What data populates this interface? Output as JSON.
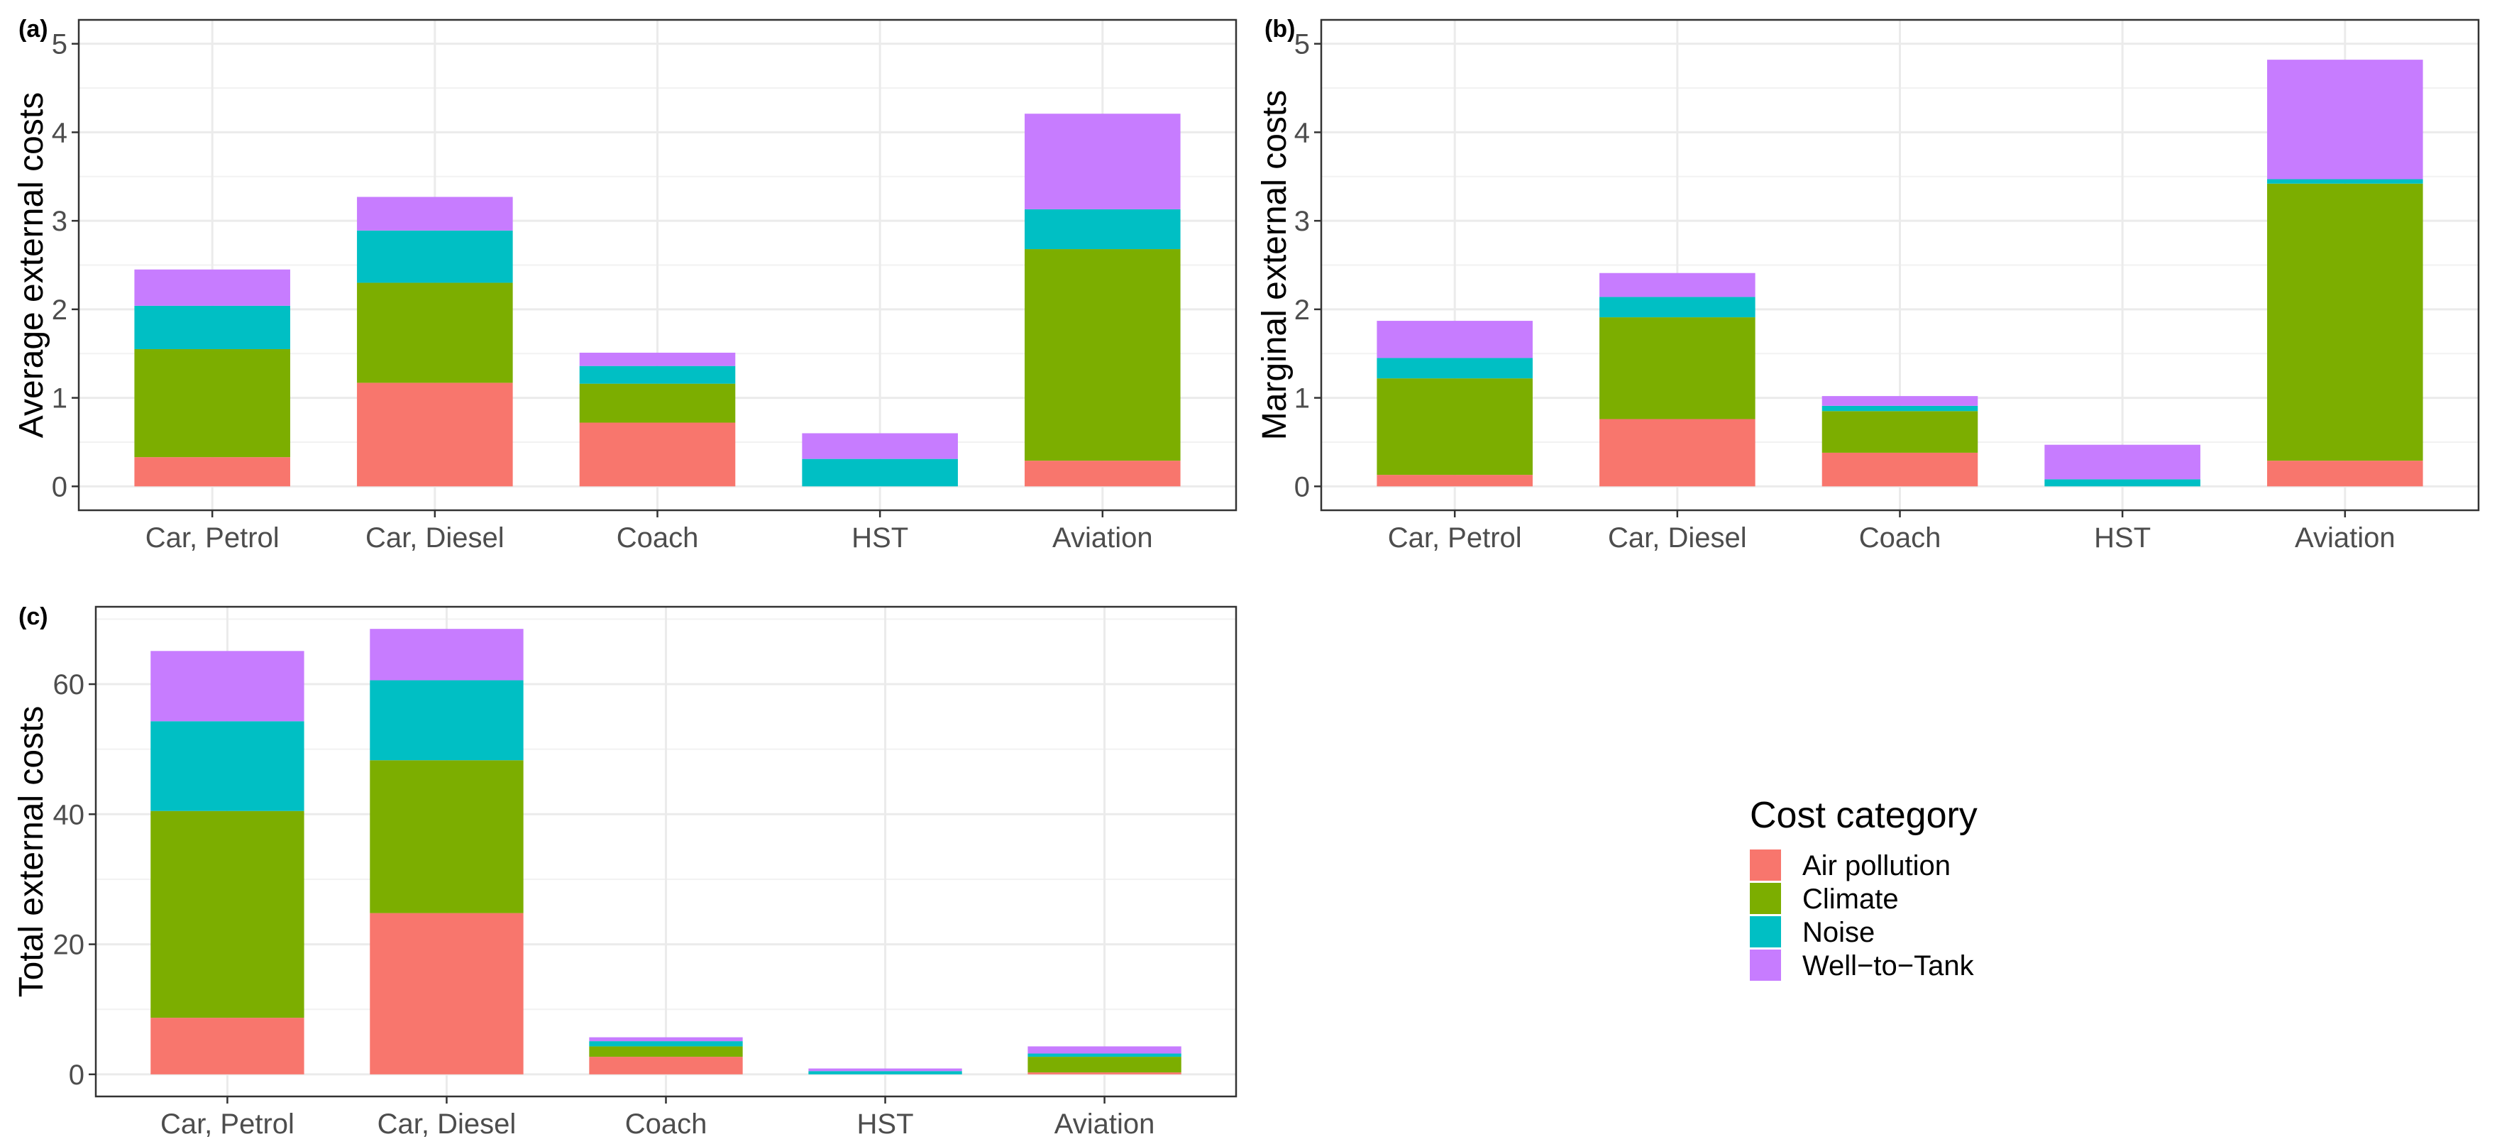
{
  "colors": {
    "Air pollution": "#F8766D",
    "Climate": "#7CAE00",
    "Noise": "#00BFC4",
    "Well-to-Tank": "#C77CFF"
  },
  "legend": {
    "title": "Cost category",
    "items": [
      "Air pollution",
      "Climate",
      "Noise",
      "Well−to−Tank"
    ]
  },
  "chart_data": [
    {
      "type": "bar",
      "stacked": true,
      "panel": "(a)",
      "title": "",
      "xlabel": "",
      "ylabel": "Average external costs",
      "ylim": [
        -0.27,
        5.27
      ],
      "yticks": [
        0,
        1,
        2,
        3,
        4,
        5
      ],
      "yticks_labels": [
        "0",
        "1",
        "2",
        "3",
        "4",
        "5"
      ],
      "grid": true,
      "categories": [
        "Car, Petrol",
        "Car, Diesel",
        "Coach",
        "HST",
        "Aviation"
      ],
      "series": [
        {
          "name": "Air pollution",
          "values": [
            0.33,
            1.17,
            0.72,
            0.0,
            0.29
          ]
        },
        {
          "name": "Climate",
          "values": [
            1.22,
            1.13,
            0.44,
            0.0,
            2.39
          ]
        },
        {
          "name": "Noise",
          "values": [
            0.49,
            0.59,
            0.2,
            0.31,
            0.45
          ]
        },
        {
          "name": "Well-to-Tank",
          "values": [
            0.41,
            0.38,
            0.15,
            0.29,
            1.08
          ]
        }
      ]
    },
    {
      "type": "bar",
      "stacked": true,
      "panel": "(b)",
      "title": "",
      "xlabel": "",
      "ylabel": "Marginal external costs",
      "ylim": [
        -0.27,
        5.27
      ],
      "yticks": [
        0,
        1,
        2,
        3,
        4,
        5
      ],
      "yticks_labels": [
        "0",
        "1",
        "2",
        "3",
        "4",
        "5"
      ],
      "grid": true,
      "categories": [
        "Car, Petrol",
        "Car, Diesel",
        "Coach",
        "HST",
        "Aviation"
      ],
      "series": [
        {
          "name": "Air pollution",
          "values": [
            0.13,
            0.76,
            0.38,
            0.0,
            0.29
          ]
        },
        {
          "name": "Climate",
          "values": [
            1.09,
            1.15,
            0.47,
            0.0,
            3.13
          ]
        },
        {
          "name": "Noise",
          "values": [
            0.23,
            0.23,
            0.06,
            0.08,
            0.05
          ]
        },
        {
          "name": "Well-to-Tank",
          "values": [
            0.42,
            0.27,
            0.11,
            0.39,
            1.35
          ]
        }
      ]
    },
    {
      "type": "bar",
      "stacked": true,
      "panel": "(c)",
      "title": "",
      "xlabel": "",
      "ylabel": "Total external costs",
      "ylim": [
        -3.4,
        71.9
      ],
      "yticks": [
        0,
        20,
        40,
        60
      ],
      "yticks_labels": [
        "0",
        "20",
        "40",
        "60"
      ],
      "grid": true,
      "categories": [
        "Car, Petrol",
        "Car, Diesel",
        "Coach",
        "HST",
        "Aviation"
      ],
      "series": [
        {
          "name": "Air pollution",
          "values": [
            8.7,
            24.8,
            2.7,
            0.0,
            0.3
          ]
        },
        {
          "name": "Climate",
          "values": [
            31.8,
            23.5,
            1.6,
            0.0,
            2.4
          ]
        },
        {
          "name": "Noise",
          "values": [
            13.8,
            12.3,
            0.8,
            0.5,
            0.5
          ]
        },
        {
          "name": "Well-to-Tank",
          "values": [
            10.8,
            7.9,
            0.6,
            0.4,
            1.1
          ]
        }
      ]
    }
  ]
}
